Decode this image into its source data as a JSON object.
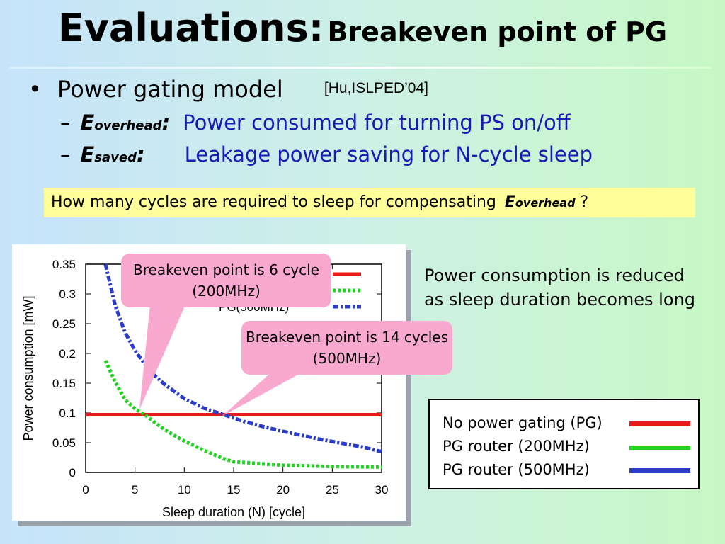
{
  "title": {
    "main": "Evaluations:",
    "sub": "Breakeven point of PG"
  },
  "bullet": {
    "text": "Power gating model",
    "ref": "[Hu,ISLPED’04]"
  },
  "items": [
    {
      "dash": "–",
      "symbol": "E",
      "subscript": "overhead",
      "colon": ":",
      "text": "Power consumed for turning PS on/off"
    },
    {
      "dash": "–",
      "symbol": "E",
      "subscript": "saved",
      "colon": ":",
      "text": "Leakage power saving for N-cycle sleep"
    }
  ],
  "question": {
    "text": "How many cycles are required to sleep for compensating",
    "symbol": "E",
    "subscript": "overhead",
    "end": "?"
  },
  "callouts": [
    {
      "text": "Breakeven point is 6 cycle (200MHz)"
    },
    {
      "text": "Breakeven point is 14 cycles (500MHz)"
    }
  ],
  "note": {
    "line1": "Power consumption is reduced",
    "line2": "as sleep duration becomes long"
  },
  "legend": [
    {
      "label": "No power gating (PG)",
      "color": "#e81a1a"
    },
    {
      "label": "PG router (200MHz)",
      "color": "#22d322"
    },
    {
      "label": "PG router (500MHz)",
      "color": "#2a3cc8"
    }
  ],
  "chart_data": {
    "type": "line",
    "xlabel": "Sleep duration (N) [cycle]",
    "ylabel": "Power consumption [mW]",
    "xlim": [
      0,
      30
    ],
    "ylim": [
      0,
      0.35
    ],
    "xticks": [
      "0",
      "5",
      "10",
      "15",
      "20",
      "25",
      "30"
    ],
    "yticks": [
      "0",
      "0.05",
      "0.1",
      "0.15",
      "0.2",
      "0.25",
      "0.3",
      "0.35"
    ],
    "inner_legend_partial": "PG(500MHz)",
    "series": [
      {
        "name": "No power gating (PG)",
        "color": "#e81a1a",
        "style": "solid",
        "x": [
          0,
          30
        ],
        "y": [
          0.097,
          0.097
        ]
      },
      {
        "name": "PG router (200MHz)",
        "color": "#22d322",
        "style": "dotted",
        "x": [
          2,
          3,
          4,
          5,
          6,
          7,
          8,
          9,
          10,
          11,
          12,
          13,
          14,
          15,
          20,
          25,
          30
        ],
        "y": [
          0.188,
          0.152,
          0.122,
          0.107,
          0.097,
          0.084,
          0.072,
          0.062,
          0.053,
          0.045,
          0.037,
          0.03,
          0.023,
          0.018,
          0.012,
          0.01,
          0.009
        ]
      },
      {
        "name": "PG router (500MHz)",
        "color": "#2a3cc8",
        "style": "dash-dot",
        "x": [
          2,
          3,
          4,
          5,
          6,
          7,
          8,
          10,
          12,
          14,
          16,
          18,
          20,
          22,
          24,
          26,
          28,
          30
        ],
        "y": [
          0.35,
          0.28,
          0.235,
          0.205,
          0.182,
          0.163,
          0.148,
          0.124,
          0.108,
          0.097,
          0.086,
          0.077,
          0.069,
          0.062,
          0.055,
          0.049,
          0.043,
          0.035
        ]
      }
    ]
  }
}
